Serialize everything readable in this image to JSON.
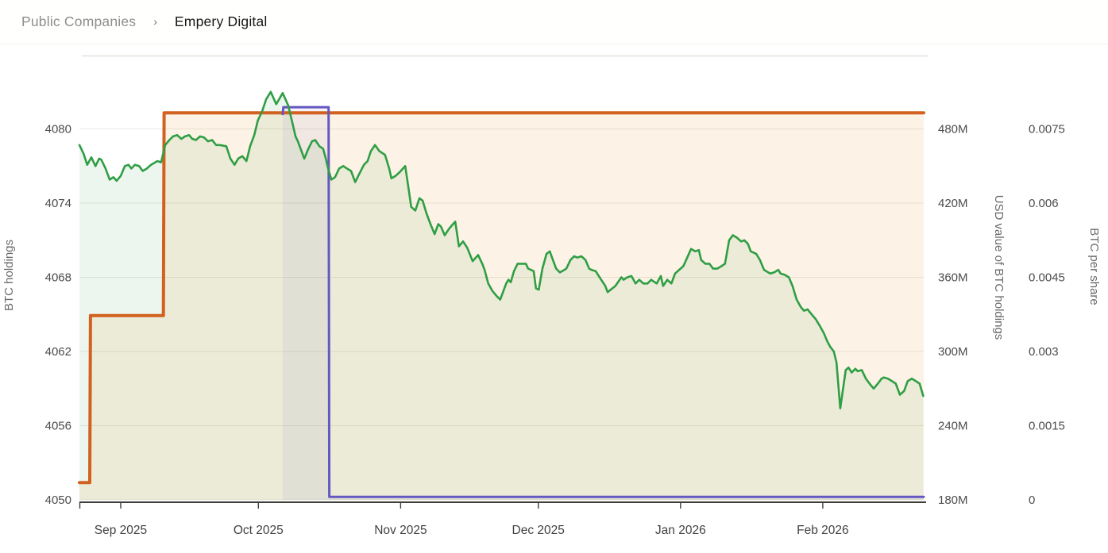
{
  "breadcrumb": {
    "section": "Public Companies",
    "separator": "›",
    "current": "Empery Digital"
  },
  "chart_data": {
    "type": "line",
    "title": "",
    "x_axis": {
      "start_date": "2025-08-23",
      "end_date": "2026-02-23",
      "total_days": 184,
      "ticks": [
        {
          "label": "Sep 2025",
          "day": 9
        },
        {
          "label": "Oct 2025",
          "day": 39
        },
        {
          "label": "Nov 2025",
          "day": 70
        },
        {
          "label": "Dec 2025",
          "day": 100
        },
        {
          "label": "Jan 2026",
          "day": 131
        },
        {
          "label": "Feb 2026",
          "day": 162
        }
      ]
    },
    "y_axes": {
      "holdings": {
        "title": "BTC holdings",
        "side": "left",
        "tick_labels": [
          "4080",
          "4074",
          "4068",
          "4062",
          "4056",
          "4050"
        ],
        "tick_values": [
          4080,
          4074,
          4068,
          4062,
          4056,
          4050
        ],
        "min": 4050,
        "max": 4086
      },
      "usd": {
        "title": "USD value of BTC holdings",
        "side": "right",
        "tick_labels": [
          "480M",
          "420M",
          "360M",
          "300M",
          "240M",
          "180M"
        ],
        "tick_values": [
          480,
          420,
          360,
          300,
          240,
          180
        ],
        "min": 180,
        "max": 540,
        "unit": "M USD"
      },
      "per_share": {
        "title": "BTC per share",
        "side": "right-outer",
        "tick_labels": [
          "0.0075",
          "0.006",
          "0.0045",
          "0.003",
          "0.0015",
          "0"
        ],
        "tick_values": [
          0.0075,
          0.006,
          0.0045,
          0.003,
          0.0015,
          0
        ],
        "min": 0,
        "max": 0.009
      }
    },
    "grid": true,
    "legend": false,
    "style": {
      "grid_color": "#e8e8e4",
      "plot_top_border_color": "#e1e1de",
      "axis_line_color": "#3f3e3a",
      "tick_label_color": "#4c4c4c",
      "axis_title_color": "#6a6a6a"
    },
    "series": [
      {
        "name": "BTC holdings",
        "axis": "holdings",
        "shape": "step",
        "color": "#d2601e",
        "fill": "rgba(233,166,58,0.13)",
        "width": 4,
        "points": [
          [
            0,
            4051.4
          ],
          [
            2.25,
            4051.4
          ],
          [
            2.4,
            4064.9
          ],
          [
            18.3,
            4064.9
          ],
          [
            18.45,
            4081.3
          ],
          [
            184,
            4081.3
          ]
        ]
      },
      {
        "name": "USD value of BTC holdings",
        "axis": "usd",
        "shape": "line",
        "color": "#2f9e44",
        "fill": "rgba(47,158,68,0.09)",
        "width": 2.6,
        "points": [
          [
            0,
            467
          ],
          [
            0.9,
            460
          ],
          [
            1.7,
            451
          ],
          [
            2.6,
            457
          ],
          [
            3.5,
            450
          ],
          [
            4.3,
            456
          ],
          [
            4.8,
            455
          ],
          [
            5.7,
            448
          ],
          [
            6.6,
            439
          ],
          [
            7.4,
            441
          ],
          [
            8.1,
            438
          ],
          [
            9,
            442
          ],
          [
            9.9,
            450
          ],
          [
            10.7,
            451
          ],
          [
            11.3,
            448
          ],
          [
            12.1,
            451
          ],
          [
            13,
            450
          ],
          [
            13.8,
            446
          ],
          [
            14.7,
            448
          ],
          [
            15.6,
            451
          ],
          [
            17,
            454
          ],
          [
            17.8,
            453
          ],
          [
            18.7,
            467
          ],
          [
            19.6,
            471
          ],
          [
            20.4,
            474
          ],
          [
            21.3,
            475
          ],
          [
            22.2,
            472
          ],
          [
            23,
            474
          ],
          [
            23.9,
            475
          ],
          [
            24.6,
            472
          ],
          [
            25.4,
            471
          ],
          [
            26.3,
            474
          ],
          [
            27.2,
            473
          ],
          [
            28,
            470
          ],
          [
            28.9,
            471
          ],
          [
            29.8,
            467
          ],
          [
            30.6,
            467
          ],
          [
            32,
            466
          ],
          [
            32.9,
            456
          ],
          [
            33.8,
            451
          ],
          [
            34.6,
            456
          ],
          [
            35.5,
            458
          ],
          [
            36.4,
            454
          ],
          [
            37.2,
            466
          ],
          [
            38.1,
            475
          ],
          [
            38.9,
            487
          ],
          [
            39.8,
            494
          ],
          [
            40.7,
            504
          ],
          [
            41.7,
            510
          ],
          [
            42.9,
            500
          ],
          [
            44.3,
            509
          ],
          [
            45.5,
            499
          ],
          [
            46.4,
            485
          ],
          [
            47.1,
            474
          ],
          [
            47.6,
            470
          ],
          [
            49,
            456
          ],
          [
            49.9,
            464
          ],
          [
            50.7,
            470
          ],
          [
            51.4,
            471
          ],
          [
            52.3,
            466
          ],
          [
            53.1,
            464
          ],
          [
            53.7,
            456
          ],
          [
            54.2,
            448
          ],
          [
            54.9,
            439
          ],
          [
            55.7,
            441
          ],
          [
            56.6,
            448
          ],
          [
            57.5,
            450
          ],
          [
            58.3,
            448
          ],
          [
            59.2,
            446
          ],
          [
            60.1,
            437
          ],
          [
            60.9,
            443
          ],
          [
            62,
            451
          ],
          [
            62.8,
            454
          ],
          [
            63.5,
            462
          ],
          [
            64.4,
            467
          ],
          [
            65.4,
            462
          ],
          [
            66.6,
            459
          ],
          [
            67.5,
            448
          ],
          [
            68,
            440
          ],
          [
            68.9,
            442
          ],
          [
            69.8,
            445
          ],
          [
            71,
            450
          ],
          [
            71.8,
            430
          ],
          [
            72.3,
            417
          ],
          [
            73.2,
            414
          ],
          [
            74.1,
            424
          ],
          [
            74.8,
            422
          ],
          [
            75.6,
            412
          ],
          [
            76.5,
            403
          ],
          [
            77.4,
            395
          ],
          [
            78.2,
            403
          ],
          [
            78.8,
            401
          ],
          [
            79.6,
            394
          ],
          [
            80.5,
            399
          ],
          [
            81.4,
            403
          ],
          [
            81.9,
            405
          ],
          [
            82.7,
            385
          ],
          [
            83.6,
            389
          ],
          [
            84.5,
            384
          ],
          [
            85.7,
            373
          ],
          [
            86.9,
            378
          ],
          [
            87.8,
            371
          ],
          [
            88.3,
            366
          ],
          [
            89.1,
            355
          ],
          [
            90,
            349
          ],
          [
            90.9,
            345
          ],
          [
            91.7,
            342
          ],
          [
            93,
            355
          ],
          [
            93.5,
            358
          ],
          [
            94,
            356
          ],
          [
            94.7,
            365
          ],
          [
            95.5,
            371
          ],
          [
            96.4,
            371
          ],
          [
            97.3,
            371
          ],
          [
            97.8,
            367
          ],
          [
            99,
            365
          ],
          [
            99.5,
            351
          ],
          [
            100.1,
            350
          ],
          [
            100.9,
            367
          ],
          [
            101.8,
            379
          ],
          [
            102.5,
            381
          ],
          [
            103,
            376
          ],
          [
            103.9,
            367
          ],
          [
            104.7,
            364
          ],
          [
            105.2,
            365
          ],
          [
            106.1,
            367
          ],
          [
            107,
            374
          ],
          [
            107.8,
            377
          ],
          [
            108.5,
            376
          ],
          [
            109.4,
            377
          ],
          [
            110.3,
            374
          ],
          [
            111.1,
            367
          ],
          [
            111.6,
            366
          ],
          [
            112.5,
            365
          ],
          [
            113.7,
            358
          ],
          [
            114.6,
            353
          ],
          [
            115.1,
            348
          ],
          [
            116.8,
            353
          ],
          [
            118.1,
            360
          ],
          [
            118.6,
            358
          ],
          [
            119.4,
            360
          ],
          [
            120.3,
            361
          ],
          [
            121.2,
            355
          ],
          [
            122,
            358
          ],
          [
            122.9,
            355
          ],
          [
            123.8,
            355
          ],
          [
            124.6,
            358
          ],
          [
            125.8,
            355
          ],
          [
            126.7,
            361
          ],
          [
            127.2,
            353
          ],
          [
            128.1,
            358
          ],
          [
            129,
            355
          ],
          [
            129.8,
            363
          ],
          [
            130.7,
            366
          ],
          [
            131.6,
            369
          ],
          [
            132.1,
            373
          ],
          [
            133.3,
            383
          ],
          [
            134.2,
            381
          ],
          [
            135,
            382
          ],
          [
            135.5,
            374
          ],
          [
            136.4,
            371
          ],
          [
            137.3,
            371
          ],
          [
            138.1,
            367
          ],
          [
            139,
            367
          ],
          [
            139.9,
            369
          ],
          [
            140.7,
            371
          ],
          [
            141.6,
            390
          ],
          [
            142.4,
            394
          ],
          [
            143.3,
            392
          ],
          [
            144.2,
            389
          ],
          [
            144.9,
            390
          ],
          [
            145.7,
            387
          ],
          [
            146.3,
            381
          ],
          [
            147.5,
            379
          ],
          [
            148.3,
            374
          ],
          [
            149.2,
            366
          ],
          [
            150.1,
            364
          ],
          [
            150.6,
            363
          ],
          [
            151.4,
            364
          ],
          [
            152.3,
            366
          ],
          [
            152.8,
            363
          ],
          [
            153.7,
            362
          ],
          [
            154.6,
            360
          ],
          [
            155.4,
            353
          ],
          [
            156.3,
            342
          ],
          [
            157.2,
            336
          ],
          [
            157.9,
            333
          ],
          [
            158.7,
            334
          ],
          [
            159.6,
            330
          ],
          [
            160.5,
            326
          ],
          [
            161.3,
            321
          ],
          [
            162.2,
            315
          ],
          [
            163,
            308
          ],
          [
            163.6,
            304
          ],
          [
            164.4,
            300
          ],
          [
            165,
            291
          ],
          [
            165.8,
            254
          ],
          [
            167,
            285
          ],
          [
            167.6,
            287
          ],
          [
            168.3,
            283
          ],
          [
            169.1,
            286
          ],
          [
            169.6,
            284
          ],
          [
            170.5,
            285
          ],
          [
            171.4,
            278
          ],
          [
            172.2,
            274
          ],
          [
            173.1,
            270
          ],
          [
            174,
            274
          ],
          [
            174.8,
            278
          ],
          [
            175.3,
            279
          ],
          [
            176.2,
            278
          ],
          [
            177.1,
            276
          ],
          [
            177.9,
            274
          ],
          [
            178.8,
            265
          ],
          [
            179.7,
            268
          ],
          [
            180.5,
            276
          ],
          [
            181.4,
            278
          ],
          [
            182.3,
            276
          ],
          [
            183.1,
            274
          ],
          [
            183.9,
            264
          ]
        ]
      },
      {
        "name": "BTC per share",
        "axis": "per_share",
        "shape": "step",
        "color": "#6457c2",
        "fill": "rgba(100,86,196,0.07)",
        "width": 3,
        "points": [
          [
            44.3,
            0.0078
          ],
          [
            44.45,
            0.00794
          ],
          [
            54.3,
            0.00794
          ],
          [
            54.45,
            6e-05
          ],
          [
            184,
            6e-05
          ]
        ]
      }
    ]
  }
}
